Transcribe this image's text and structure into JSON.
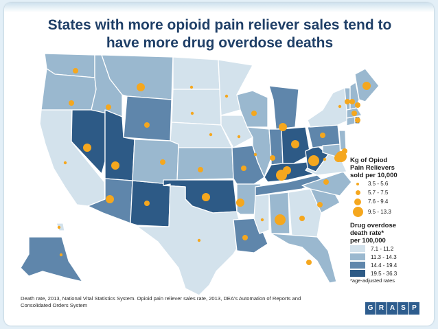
{
  "title_line1": "States with more opioid pain reliever sales tend to",
  "title_line2": "have more drug overdose deaths",
  "legend": {
    "sales_heading": [
      "Kg of Opiod",
      "Pain Relievers",
      "sold per 10,000"
    ],
    "sales_bins": [
      {
        "label": "3.5 - 5.6"
      },
      {
        "label": "5.7 - 7.5"
      },
      {
        "label": "7.6 - 9.4"
      },
      {
        "label": "9.5 - 13.3"
      }
    ],
    "death_heading": [
      "Drug overdose",
      "death rate*",
      "per 100,000"
    ],
    "death_bins": [
      {
        "label": "7.1 - 11.2",
        "color": "#d3e2ec"
      },
      {
        "label": "11.3 - 14.3",
        "color": "#9ab8cf"
      },
      {
        "label": "14.4 - 19.4",
        "color": "#5f86ab"
      },
      {
        "label": "19.5 - 36.3",
        "color": "#2d5a86"
      }
    ],
    "note": "*age-adjusted rates"
  },
  "colors": {
    "title": "#1f3f67",
    "dot": "#f5a71e",
    "border": "#ffffff"
  },
  "footnote": "Death rate, 2013, National Vital Statistics System. Opioid pain reliever sales rate, 2013, DEA's Automation of Reports and Consolidated Orders System",
  "logo_letters": [
    "G",
    "R",
    "A",
    "S",
    "P"
  ],
  "map_data": {
    "states": [
      {
        "name": "WA",
        "death_bin": 2,
        "sales_bin": 2
      },
      {
        "name": "OR",
        "death_bin": 2,
        "sales_bin": 2
      },
      {
        "name": "CA",
        "death_bin": 1,
        "sales_bin": 1
      },
      {
        "name": "NV",
        "death_bin": 4,
        "sales_bin": 3
      },
      {
        "name": "ID",
        "death_bin": 2,
        "sales_bin": 2
      },
      {
        "name": "MT",
        "death_bin": 2,
        "sales_bin": 3
      },
      {
        "name": "WY",
        "death_bin": 3,
        "sales_bin": 2
      },
      {
        "name": "UT",
        "death_bin": 4,
        "sales_bin": 3
      },
      {
        "name": "AZ",
        "death_bin": 3,
        "sales_bin": 3
      },
      {
        "name": "NM",
        "death_bin": 4,
        "sales_bin": 2
      },
      {
        "name": "CO",
        "death_bin": 2,
        "sales_bin": 2
      },
      {
        "name": "ND",
        "death_bin": 1,
        "sales_bin": 1
      },
      {
        "name": "SD",
        "death_bin": 1,
        "sales_bin": 1
      },
      {
        "name": "NE",
        "death_bin": 1,
        "sales_bin": 1
      },
      {
        "name": "KS",
        "death_bin": 2,
        "sales_bin": 2
      },
      {
        "name": "OK",
        "death_bin": 4,
        "sales_bin": 3
      },
      {
        "name": "TX",
        "death_bin": 1,
        "sales_bin": 1
      },
      {
        "name": "MN",
        "death_bin": 1,
        "sales_bin": 1
      },
      {
        "name": "IA",
        "death_bin": 1,
        "sales_bin": 1
      },
      {
        "name": "MO",
        "death_bin": 3,
        "sales_bin": 2
      },
      {
        "name": "AR",
        "death_bin": 2,
        "sales_bin": 3
      },
      {
        "name": "LA",
        "death_bin": 3,
        "sales_bin": 2
      },
      {
        "name": "WI",
        "death_bin": 2,
        "sales_bin": 2
      },
      {
        "name": "IL",
        "death_bin": 2,
        "sales_bin": 1
      },
      {
        "name": "MI",
        "death_bin": 3,
        "sales_bin": 3
      },
      {
        "name": "IN",
        "death_bin": 3,
        "sales_bin": 2
      },
      {
        "name": "OH",
        "death_bin": 4,
        "sales_bin": 3
      },
      {
        "name": "KY",
        "death_bin": 4,
        "sales_bin": 3
      },
      {
        "name": "TN",
        "death_bin": 3,
        "sales_bin": 4
      },
      {
        "name": "MS",
        "death_bin": 1,
        "sales_bin": 1
      },
      {
        "name": "AL",
        "death_bin": 2,
        "sales_bin": 4
      },
      {
        "name": "GA",
        "death_bin": 1,
        "sales_bin": 2
      },
      {
        "name": "FL",
        "death_bin": 2,
        "sales_bin": 2
      },
      {
        "name": "SC",
        "death_bin": 2,
        "sales_bin": 2
      },
      {
        "name": "NC",
        "death_bin": 2,
        "sales_bin": 2
      },
      {
        "name": "VA",
        "death_bin": 1,
        "sales_bin": 1
      },
      {
        "name": "WV",
        "death_bin": 4,
        "sales_bin": 4
      },
      {
        "name": "PA",
        "death_bin": 3,
        "sales_bin": 2
      },
      {
        "name": "NY",
        "death_bin": 1,
        "sales_bin": 1
      },
      {
        "name": "ME",
        "death_bin": 2,
        "sales_bin": 3
      },
      {
        "name": "VT",
        "death_bin": 2,
        "sales_bin": 2
      },
      {
        "name": "NH",
        "death_bin": 2,
        "sales_bin": 2
      },
      {
        "name": "MA",
        "death_bin": 2,
        "sales_bin": 2
      },
      {
        "name": "CT",
        "death_bin": 2,
        "sales_bin": 2
      },
      {
        "name": "RI",
        "death_bin": 4,
        "sales_bin": 2
      },
      {
        "name": "NJ",
        "death_bin": 2,
        "sales_bin": 2
      },
      {
        "name": "DE",
        "death_bin": 4,
        "sales_bin": 4
      },
      {
        "name": "MD",
        "death_bin": 2,
        "sales_bin": 3
      },
      {
        "name": "AK",
        "death_bin": 3,
        "sales_bin": 1
      },
      {
        "name": "HI",
        "death_bin": 1,
        "sales_bin": 1
      }
    ]
  }
}
